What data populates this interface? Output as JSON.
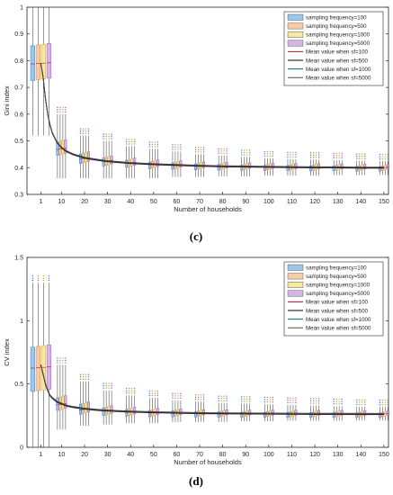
{
  "chart_data": [
    {
      "type": "box",
      "panel_label": "(c)",
      "xlabel": "Number of households",
      "ylabel": "Gini index",
      "ylim": [
        0.3,
        1.0
      ],
      "yticks": [
        "0.3",
        "0.4",
        "0.5",
        "0.6",
        "0.7",
        "0.8",
        "0.9",
        "1"
      ],
      "ytick_values": [
        0.3,
        0.4,
        0.5,
        0.6,
        0.7,
        0.8,
        0.9,
        1.0
      ],
      "xticks": [
        "1",
        "10",
        "20",
        "30",
        "40",
        "50",
        "60",
        "70",
        "80",
        "90",
        "100",
        "110",
        "120",
        "130",
        "140",
        "150"
      ],
      "xtick_values": [
        1,
        10,
        20,
        30,
        40,
        50,
        60,
        70,
        80,
        90,
        100,
        110,
        120,
        130,
        140,
        150
      ],
      "xlim": [
        -5,
        152
      ],
      "legend_position": "top-right",
      "legend": [
        {
          "label": "sampling frequency=100",
          "kind": "box",
          "color": "#7fb2e0"
        },
        {
          "label": "sampling frequency=500",
          "kind": "box",
          "color": "#f3b98e"
        },
        {
          "label": "sampling frequency=1000",
          "kind": "box",
          "color": "#f3e08a"
        },
        {
          "label": "sampling frequency=5000",
          "kind": "box",
          "color": "#c79be0"
        },
        {
          "label": "Mean value when sf=100",
          "kind": "line",
          "color": "#a2142f"
        },
        {
          "label": "Mean value when sf=500",
          "kind": "line",
          "color": "#000000"
        },
        {
          "label": "Mean value when sf=1000",
          "kind": "line",
          "color": "#006b6b"
        },
        {
          "label": "Mean value when sf=5000",
          "kind": "line",
          "color": "#4d4d4d"
        }
      ],
      "groups": [
        {
          "x": 1,
          "q1": 0.73,
          "median": 0.79,
          "q3": 0.86,
          "whisker_low": 0.52,
          "whisker_high": 1.0
        },
        {
          "x": 10,
          "q1": 0.45,
          "median": 0.47,
          "q3": 0.5,
          "whisker_low": 0.36,
          "whisker_high": 0.6
        },
        {
          "x": 20,
          "q1": 0.42,
          "median": 0.435,
          "q3": 0.455,
          "whisker_low": 0.36,
          "whisker_high": 0.52
        },
        {
          "x": 30,
          "q1": 0.41,
          "median": 0.425,
          "q3": 0.44,
          "whisker_low": 0.36,
          "whisker_high": 0.5
        },
        {
          "x": 40,
          "q1": 0.405,
          "median": 0.418,
          "q3": 0.432,
          "whisker_low": 0.36,
          "whisker_high": 0.48
        },
        {
          "x": 50,
          "q1": 0.4,
          "median": 0.413,
          "q3": 0.425,
          "whisker_low": 0.36,
          "whisker_high": 0.47
        },
        {
          "x": 60,
          "q1": 0.398,
          "median": 0.41,
          "q3": 0.422,
          "whisker_low": 0.365,
          "whisker_high": 0.46
        },
        {
          "x": 70,
          "q1": 0.396,
          "median": 0.407,
          "q3": 0.418,
          "whisker_low": 0.365,
          "whisker_high": 0.45
        },
        {
          "x": 80,
          "q1": 0.395,
          "median": 0.405,
          "q3": 0.416,
          "whisker_low": 0.368,
          "whisker_high": 0.445
        },
        {
          "x": 90,
          "q1": 0.394,
          "median": 0.404,
          "q3": 0.414,
          "whisker_low": 0.368,
          "whisker_high": 0.44
        },
        {
          "x": 100,
          "q1": 0.393,
          "median": 0.403,
          "q3": 0.413,
          "whisker_low": 0.37,
          "whisker_high": 0.435
        },
        {
          "x": 110,
          "q1": 0.393,
          "median": 0.402,
          "q3": 0.412,
          "whisker_low": 0.37,
          "whisker_high": 0.432
        },
        {
          "x": 120,
          "q1": 0.392,
          "median": 0.401,
          "q3": 0.411,
          "whisker_low": 0.37,
          "whisker_high": 0.43
        },
        {
          "x": 130,
          "q1": 0.392,
          "median": 0.401,
          "q3": 0.41,
          "whisker_low": 0.372,
          "whisker_high": 0.428
        },
        {
          "x": 140,
          "q1": 0.391,
          "median": 0.4,
          "q3": 0.409,
          "whisker_low": 0.372,
          "whisker_high": 0.426
        },
        {
          "x": 150,
          "q1": 0.391,
          "median": 0.4,
          "q3": 0.408,
          "whisker_low": 0.373,
          "whisker_high": 0.424
        }
      ],
      "mean_curve": {
        "x": [
          1,
          2,
          3,
          4,
          5,
          6,
          8,
          10,
          12,
          15,
          20,
          25,
          30,
          40,
          50,
          60,
          70,
          80,
          90,
          100,
          110,
          120,
          130,
          140,
          150
        ],
        "y": [
          0.79,
          0.74,
          0.66,
          0.6,
          0.56,
          0.53,
          0.495,
          0.475,
          0.462,
          0.45,
          0.437,
          0.43,
          0.424,
          0.417,
          0.413,
          0.41,
          0.407,
          0.405,
          0.404,
          0.403,
          0.402,
          0.401,
          0.401,
          0.4,
          0.4
        ]
      }
    },
    {
      "type": "box",
      "panel_label": "(d)",
      "xlabel": "Number of households",
      "ylabel": "CV index",
      "ylim": [
        0,
        1.5
      ],
      "yticks": [
        "0",
        "0.5",
        "1",
        "1.5"
      ],
      "ytick_values": [
        0,
        0.5,
        1.0,
        1.5
      ],
      "xticks": [
        "1",
        "10",
        "20",
        "30",
        "40",
        "50",
        "60",
        "70",
        "80",
        "90",
        "100",
        "110",
        "120",
        "130",
        "140",
        "150"
      ],
      "xtick_values": [
        1,
        10,
        20,
        30,
        40,
        50,
        60,
        70,
        80,
        90,
        100,
        110,
        120,
        130,
        140,
        150
      ],
      "xlim": [
        -5,
        152
      ],
      "legend_position": "top-right",
      "legend": [
        {
          "label": "sampling frequency=100",
          "kind": "box",
          "color": "#7fb2e0"
        },
        {
          "label": "sampling frequency=500",
          "kind": "box",
          "color": "#f3b98e"
        },
        {
          "label": "sampling frequency=1000",
          "kind": "box",
          "color": "#f3e08a"
        },
        {
          "label": "sampling frequency=5000",
          "kind": "box",
          "color": "#c79be0"
        },
        {
          "label": "Mean value when sf=100",
          "kind": "line",
          "color": "#a2142f"
        },
        {
          "label": "Mean value when sf=500",
          "kind": "line",
          "color": "#000000"
        },
        {
          "label": "Mean value when sf=1000",
          "kind": "line",
          "color": "#006b6b"
        },
        {
          "label": "Mean value when sf=5000",
          "kind": "line",
          "color": "#4d4d4d"
        }
      ],
      "groups": [
        {
          "x": 1,
          "q1": 0.45,
          "median": 0.63,
          "q3": 0.8,
          "whisker_low": 0.0,
          "whisker_high": 1.3
        },
        {
          "x": 10,
          "q1": 0.3,
          "median": 0.34,
          "q3": 0.4,
          "whisker_low": 0.14,
          "whisker_high": 0.65
        },
        {
          "x": 20,
          "q1": 0.27,
          "median": 0.3,
          "q3": 0.35,
          "whisker_low": 0.17,
          "whisker_high": 0.52
        },
        {
          "x": 30,
          "q1": 0.26,
          "median": 0.29,
          "q3": 0.32,
          "whisker_low": 0.18,
          "whisker_high": 0.45
        },
        {
          "x": 40,
          "q1": 0.255,
          "median": 0.28,
          "q3": 0.31,
          "whisker_low": 0.19,
          "whisker_high": 0.41
        },
        {
          "x": 50,
          "q1": 0.25,
          "median": 0.275,
          "q3": 0.3,
          "whisker_low": 0.19,
          "whisker_high": 0.39
        },
        {
          "x": 60,
          "q1": 0.25,
          "median": 0.272,
          "q3": 0.295,
          "whisker_low": 0.2,
          "whisker_high": 0.37
        },
        {
          "x": 70,
          "q1": 0.248,
          "median": 0.27,
          "q3": 0.29,
          "whisker_low": 0.2,
          "whisker_high": 0.36
        },
        {
          "x": 80,
          "q1": 0.247,
          "median": 0.268,
          "q3": 0.288,
          "whisker_low": 0.2,
          "whisker_high": 0.35
        },
        {
          "x": 90,
          "q1": 0.246,
          "median": 0.267,
          "q3": 0.286,
          "whisker_low": 0.205,
          "whisker_high": 0.345
        },
        {
          "x": 100,
          "q1": 0.246,
          "median": 0.266,
          "q3": 0.285,
          "whisker_low": 0.205,
          "whisker_high": 0.34
        },
        {
          "x": 110,
          "q1": 0.245,
          "median": 0.265,
          "q3": 0.284,
          "whisker_low": 0.21,
          "whisker_high": 0.335
        },
        {
          "x": 120,
          "q1": 0.245,
          "median": 0.264,
          "q3": 0.283,
          "whisker_low": 0.21,
          "whisker_high": 0.33
        },
        {
          "x": 130,
          "q1": 0.245,
          "median": 0.264,
          "q3": 0.282,
          "whisker_low": 0.21,
          "whisker_high": 0.325
        },
        {
          "x": 140,
          "q1": 0.244,
          "median": 0.263,
          "q3": 0.281,
          "whisker_low": 0.212,
          "whisker_high": 0.32
        },
        {
          "x": 150,
          "q1": 0.244,
          "median": 0.263,
          "q3": 0.28,
          "whisker_low": 0.212,
          "whisker_high": 0.318
        }
      ],
      "mean_curve": {
        "x": [
          1,
          2,
          3,
          4,
          5,
          6,
          8,
          10,
          12,
          15,
          20,
          25,
          30,
          40,
          50,
          60,
          70,
          80,
          90,
          100,
          110,
          120,
          130,
          140,
          150
        ],
        "y": [
          0.65,
          0.58,
          0.5,
          0.45,
          0.41,
          0.39,
          0.36,
          0.345,
          0.33,
          0.318,
          0.305,
          0.296,
          0.29,
          0.282,
          0.277,
          0.273,
          0.27,
          0.268,
          0.267,
          0.266,
          0.265,
          0.264,
          0.264,
          0.263,
          0.263
        ]
      }
    }
  ]
}
